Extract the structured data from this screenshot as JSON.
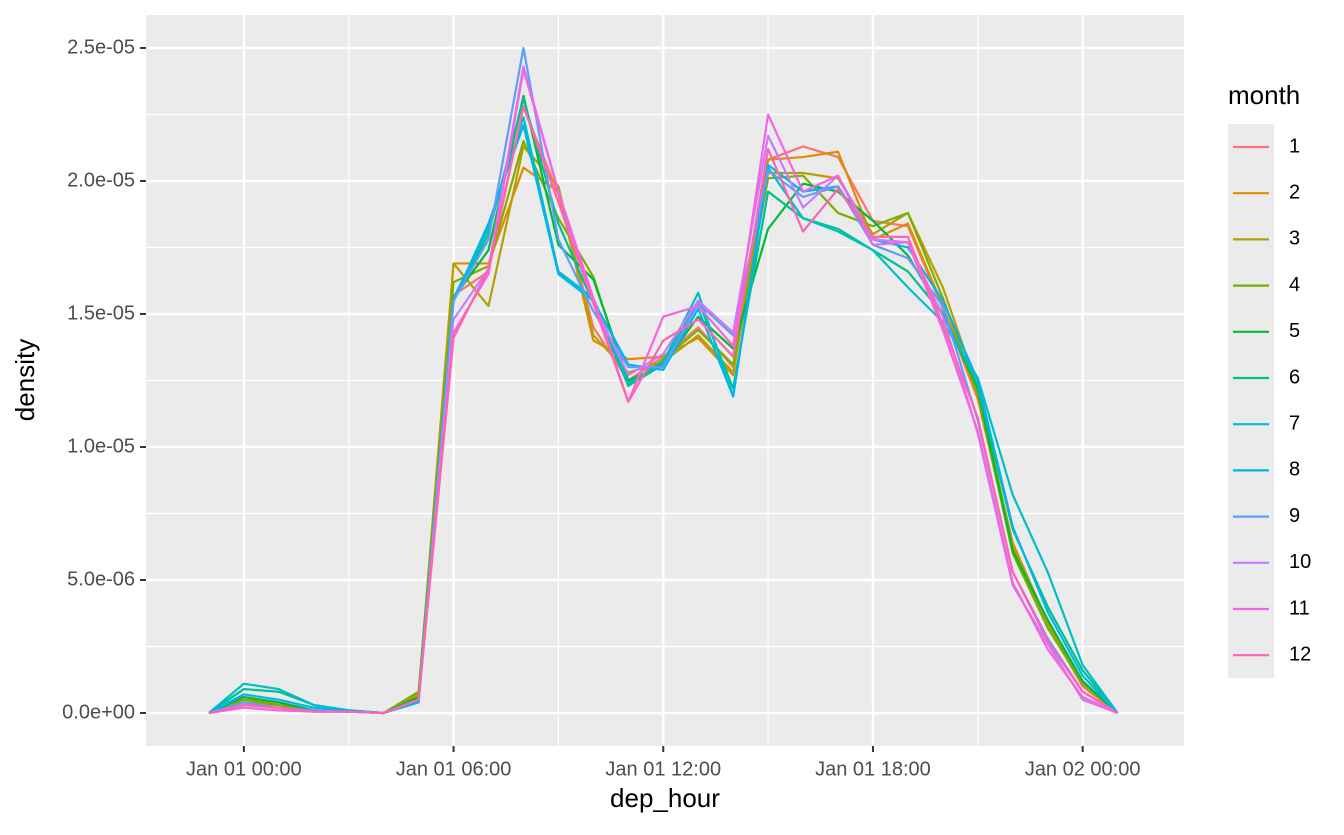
{
  "chart_data": {
    "type": "line",
    "x_label": "dep_hour",
    "y_label": "density",
    "legend_title": "month",
    "legend_position": "right",
    "grid": true,
    "x": [
      -1,
      0,
      1,
      2,
      3,
      4,
      5,
      6,
      7,
      8,
      9,
      10,
      11,
      12,
      13,
      14,
      15,
      16,
      17,
      18,
      19,
      20,
      21,
      22,
      23,
      24,
      25
    ],
    "xlim": [
      -2.8,
      26.9
    ],
    "xticks": [
      {
        "value": 0,
        "label": "Jan 01 00:00"
      },
      {
        "value": 6,
        "label": "Jan 01 06:00"
      },
      {
        "value": 12,
        "label": "Jan 01 12:00"
      },
      {
        "value": 18,
        "label": "Jan 01 18:00"
      },
      {
        "value": 24,
        "label": "Jan 02 00:00"
      }
    ],
    "ylim": [
      -1.24e-06,
      2.624e-05
    ],
    "yticks": [
      {
        "value": 0,
        "label": "0.0e+00"
      },
      {
        "value": 5e-06,
        "label": "5.0e-06"
      },
      {
        "value": 1e-05,
        "label": "1.0e-05"
      },
      {
        "value": 1.5e-05,
        "label": "1.5e-05"
      },
      {
        "value": 2e-05,
        "label": "2.0e-05"
      },
      {
        "value": 2.5e-05,
        "label": "2.5e-05"
      }
    ],
    "series": [
      {
        "name": "1",
        "color": "#F8766D",
        "values": [
          0,
          6e-07,
          4e-07,
          1e-07,
          5e-08,
          0,
          5e-07,
          1.57e-05,
          1.66e-05,
          2.28e-05,
          1.95e-05,
          1.45e-05,
          1.25e-05,
          1.34e-05,
          1.45e-05,
          1.3e-05,
          2.08e-05,
          2.13e-05,
          2.09e-05,
          1.85e-05,
          1.83e-05,
          1.52e-05,
          1.18e-05,
          6.2e-06,
          3.3e-06,
          1e-06,
          0
        ]
      },
      {
        "name": "2",
        "color": "#DE8C00",
        "values": [
          0,
          6e-07,
          3e-07,
          1e-07,
          5e-08,
          0,
          6e-07,
          1.69e-05,
          1.69e-05,
          2.05e-05,
          1.96e-05,
          1.4e-05,
          1.33e-05,
          1.34e-05,
          1.41e-05,
          1.27e-05,
          2.08e-05,
          2.09e-05,
          2.11e-05,
          1.78e-05,
          1.84e-05,
          1.53e-05,
          1.19e-05,
          6.4e-06,
          3.4e-06,
          1.1e-06,
          0
        ]
      },
      {
        "name": "3",
        "color": "#B79F00",
        "values": [
          0,
          4e-07,
          3e-07,
          1e-07,
          5e-08,
          0,
          7e-07,
          1.69e-05,
          1.53e-05,
          2.13e-05,
          1.98e-05,
          1.42e-05,
          1.28e-05,
          1.32e-05,
          1.42e-05,
          1.28e-05,
          2.03e-05,
          2.03e-05,
          2.01e-05,
          1.8e-05,
          1.88e-05,
          1.6e-05,
          1.22e-05,
          6.3e-06,
          3.4e-06,
          1.1e-06,
          0
        ]
      },
      {
        "name": "4",
        "color": "#7CAE00",
        "values": [
          0,
          5e-07,
          3e-07,
          1e-07,
          5e-08,
          0,
          8e-07,
          1.62e-05,
          1.68e-05,
          2.15e-05,
          1.86e-05,
          1.64e-05,
          1.23e-05,
          1.33e-05,
          1.44e-05,
          1.31e-05,
          2.01e-05,
          2.02e-05,
          1.88e-05,
          1.83e-05,
          1.88e-05,
          1.56e-05,
          1.2e-05,
          6e-06,
          3.2e-06,
          1.1e-06,
          0
        ]
      },
      {
        "name": "5",
        "color": "#00BA38",
        "values": [
          0,
          6e-07,
          4e-07,
          1e-07,
          5e-08,
          0,
          6e-07,
          1.56e-05,
          1.74e-05,
          2.32e-05,
          1.76e-05,
          1.63e-05,
          1.25e-05,
          1.31e-05,
          1.49e-05,
          1.37e-05,
          1.82e-05,
          1.99e-05,
          1.96e-05,
          1.85e-05,
          1.72e-05,
          1.5e-05,
          1.22e-05,
          6.1e-06,
          3.5e-06,
          1.2e-06,
          0
        ]
      },
      {
        "name": "6",
        "color": "#00C08B",
        "values": [
          0,
          9e-07,
          8e-07,
          3e-07,
          1e-07,
          0,
          5e-07,
          1.55e-05,
          1.8e-05,
          2.31e-05,
          1.84e-05,
          1.54e-05,
          1.23e-05,
          1.31e-05,
          1.55e-05,
          1.22e-05,
          1.96e-05,
          1.86e-05,
          1.82e-05,
          1.74e-05,
          1.66e-05,
          1.5e-05,
          1.23e-05,
          6.9e-06,
          4e-06,
          1.6e-06,
          0
        ]
      },
      {
        "name": "7",
        "color": "#00BFC4",
        "values": [
          0,
          1.1e-06,
          9e-07,
          3e-07,
          1e-07,
          0,
          4e-07,
          1.56e-05,
          1.82e-05,
          2.24e-05,
          1.66e-05,
          1.56e-05,
          1.24e-05,
          1.32e-05,
          1.58e-05,
          1.19e-05,
          2.05e-05,
          1.86e-05,
          1.81e-05,
          1.74e-05,
          1.6e-05,
          1.47e-05,
          1.26e-05,
          8.2e-06,
          5.3e-06,
          1.8e-06,
          0
        ]
      },
      {
        "name": "8",
        "color": "#00B4F0",
        "values": [
          0,
          7e-07,
          5e-07,
          2e-07,
          1e-07,
          0,
          4e-07,
          1.55e-05,
          1.84e-05,
          2.21e-05,
          1.65e-05,
          1.55e-05,
          1.31e-05,
          1.29e-05,
          1.52e-05,
          1.19e-05,
          2.06e-05,
          1.96e-05,
          1.98e-05,
          1.78e-05,
          1.75e-05,
          1.55e-05,
          1.25e-05,
          7e-06,
          3.8e-06,
          1.4e-06,
          0
        ]
      },
      {
        "name": "9",
        "color": "#619CFF",
        "values": [
          0,
          4e-07,
          2e-07,
          1e-07,
          5e-08,
          0,
          5e-07,
          1.55e-05,
          1.78e-05,
          2.5e-05,
          1.78e-05,
          1.51e-05,
          1.3e-05,
          1.3e-05,
          1.54e-05,
          1.42e-05,
          2.04e-05,
          1.94e-05,
          1.98e-05,
          1.76e-05,
          1.71e-05,
          1.53e-05,
          1.1e-05,
          5.3e-06,
          2.8e-06,
          8e-07,
          0
        ]
      },
      {
        "name": "10",
        "color": "#C77CFF",
        "values": [
          0,
          3e-07,
          2e-07,
          5e-08,
          5e-08,
          0,
          5e-07,
          1.48e-05,
          1.67e-05,
          2.43e-05,
          1.96e-05,
          1.54e-05,
          1.27e-05,
          1.35e-05,
          1.55e-05,
          1.43e-05,
          2.17e-05,
          1.9e-05,
          2.02e-05,
          1.78e-05,
          1.77e-05,
          1.49e-05,
          1.05e-05,
          4.8e-06,
          2.6e-06,
          5e-07,
          0
        ]
      },
      {
        "name": "11",
        "color": "#F564E3",
        "values": [
          0,
          2e-07,
          1e-07,
          5e-08,
          5e-08,
          0,
          5e-07,
          1.43e-05,
          1.65e-05,
          2.42e-05,
          1.96e-05,
          1.56e-05,
          1.17e-05,
          1.49e-05,
          1.53e-05,
          1.38e-05,
          2.25e-05,
          1.96e-05,
          2.02e-05,
          1.76e-05,
          1.77e-05,
          1.44e-05,
          1.06e-05,
          4.9e-06,
          2.4e-06,
          6e-07,
          0
        ]
      },
      {
        "name": "12",
        "color": "#FF64B0",
        "values": [
          0,
          3e-07,
          2e-07,
          5e-08,
          5e-08,
          0,
          5e-07,
          1.41e-05,
          1.67e-05,
          2.28e-05,
          1.92e-05,
          1.54e-05,
          1.17e-05,
          1.4e-05,
          1.48e-05,
          1.34e-05,
          2.12e-05,
          1.81e-05,
          1.97e-05,
          1.79e-05,
          1.79e-05,
          1.46e-05,
          1.11e-05,
          5.3e-06,
          2.7e-06,
          8e-07,
          0
        ]
      }
    ]
  }
}
